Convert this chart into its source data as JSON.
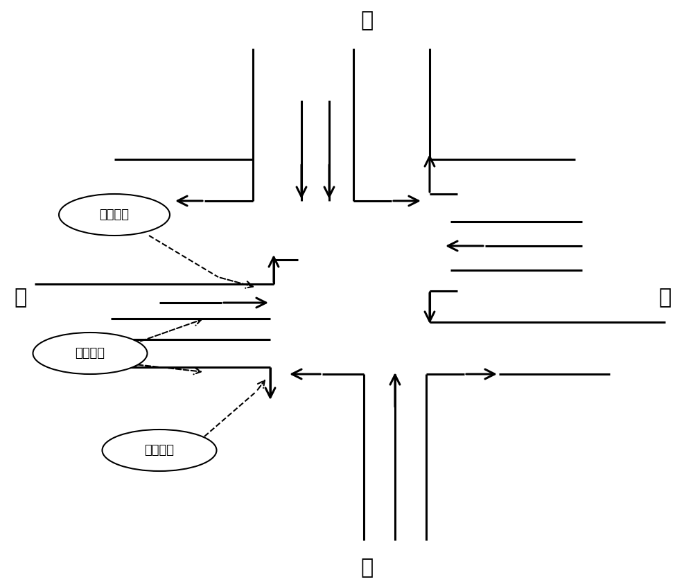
{
  "background_color": "#ffffff",
  "line_color": "#000000",
  "line_width": 2.2,
  "arrow_scale": 25,
  "labels": {
    "north": "北",
    "south": "南",
    "east": "东",
    "west": "西",
    "left_turn": "左转车道",
    "straight": "直行车道",
    "right_turn": "右转车道"
  }
}
